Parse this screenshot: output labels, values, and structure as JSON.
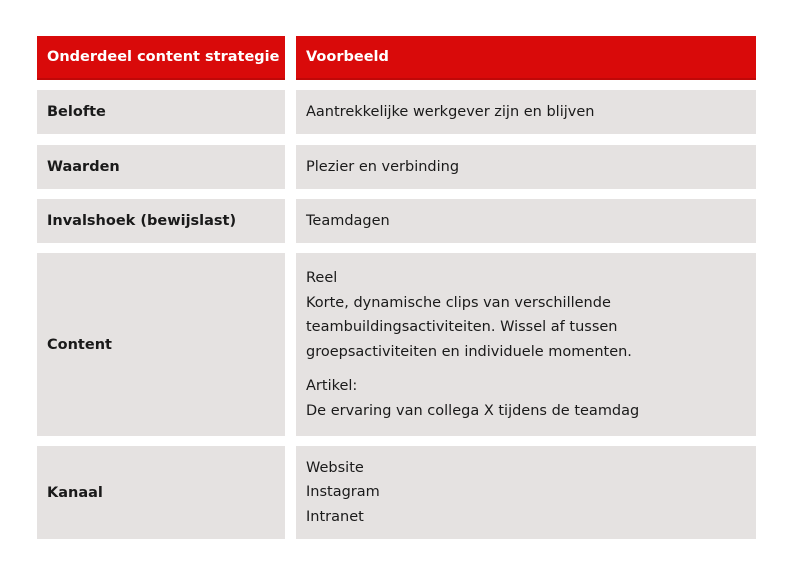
{
  "header": {
    "col1": "Onderdeel content strategie",
    "col2": "Voorbeeld"
  },
  "rows": [
    {
      "label": "Belofte",
      "lines": [
        "Aantrekkelijke werkgever zijn en blijven"
      ]
    },
    {
      "label": "Waarden",
      "lines": [
        "Plezier en verbinding"
      ]
    },
    {
      "label": "Invalshoek (bewijslast)",
      "lines": [
        "Teamdagen"
      ]
    },
    {
      "label": "Content",
      "lines": [
        "Reel",
        "Korte, dynamische clips van verschillende",
        "teambuildingsactiviteiten. Wissel af tussen",
        "groepsactiviteiten en individuele momenten.",
        "Artikel:",
        "De ervaring van collega X tijdens de teamdag"
      ]
    },
    {
      "label": "Kanaal",
      "lines": [
        "Website",
        "Instagram",
        "Intranet"
      ]
    }
  ],
  "colors": {
    "header": "#d90a0a",
    "row": "#e5e2e1"
  }
}
